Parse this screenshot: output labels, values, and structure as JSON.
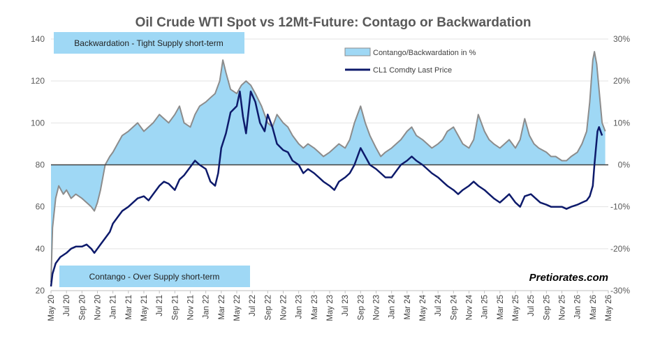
{
  "chart_data": {
    "type": "line",
    "title": "Oil Crude WTI Spot vs 12Mt-Future: Contago or Backwardation",
    "x_labels": [
      "May 20",
      "Jul 20",
      "Sep 20",
      "Nov 20",
      "Jan 21",
      "Mar 21",
      "May 21",
      "Jul 21",
      "Sep 21",
      "Nov 21",
      "Jan 22",
      "Mar 22",
      "May 22",
      "Jul 22",
      "Sep 22",
      "Nov 22",
      "Jan 23",
      "Mar 23",
      "May 23",
      "Jul 23",
      "Sep 23",
      "Nov 23",
      "Jan 24",
      "Mar 24",
      "May 24",
      "Jul 24",
      "Sep 24",
      "Nov 24",
      "Jan 25",
      "Mar 25",
      "May 25",
      "Jul 25",
      "Sep 25",
      "Nov 25",
      "Jan 26",
      "Mar 26",
      "May 26"
    ],
    "y_left": {
      "ticks": [
        20,
        40,
        60,
        80,
        100,
        120,
        140
      ],
      "range": [
        20,
        140
      ]
    },
    "y_right": {
      "ticks": [
        "-30%",
        "-20%",
        "-10%",
        "0%",
        "10%",
        "20%",
        "30%"
      ],
      "range": [
        -30,
        30
      ],
      "unit": "%"
    },
    "legend": {
      "area_label": "Contango/Backwardation in %",
      "line_label": "CL1 Comdty Last Price"
    },
    "annotations": {
      "top_box": "Backwardation - Tight Supply short-term",
      "bottom_box": "Contango - Over Supply short-term",
      "watermark": "Pretiorates.com"
    },
    "colors": {
      "area_fill": "#9fd8f5",
      "area_edge": "#8c8c8c",
      "price_line": "#0d1a6b",
      "box_fill": "#9fd8f5",
      "zero_line": "#404040"
    },
    "series": [
      {
        "name": "Contango/Backwardation in %",
        "axis": "right",
        "points": [
          [
            0,
            -28
          ],
          [
            0.1,
            -15
          ],
          [
            0.3,
            -8
          ],
          [
            0.5,
            -5
          ],
          [
            0.8,
            -7
          ],
          [
            1,
            -6
          ],
          [
            1.3,
            -8
          ],
          [
            1.6,
            -7
          ],
          [
            2,
            -8
          ],
          [
            2.3,
            -9
          ],
          [
            2.6,
            -10
          ],
          [
            2.8,
            -11
          ],
          [
            3,
            -9
          ],
          [
            3.2,
            -6
          ],
          [
            3.5,
            0
          ],
          [
            3.8,
            2
          ],
          [
            4,
            3
          ],
          [
            4.3,
            5
          ],
          [
            4.6,
            7
          ],
          [
            5,
            8
          ],
          [
            5.3,
            9
          ],
          [
            5.6,
            10
          ],
          [
            6,
            8
          ],
          [
            6.3,
            9
          ],
          [
            6.6,
            10
          ],
          [
            7,
            12
          ],
          [
            7.3,
            11
          ],
          [
            7.6,
            10
          ],
          [
            8,
            12
          ],
          [
            8.3,
            14
          ],
          [
            8.6,
            10
          ],
          [
            9,
            9
          ],
          [
            9.3,
            12
          ],
          [
            9.6,
            14
          ],
          [
            10,
            15
          ],
          [
            10.3,
            16
          ],
          [
            10.6,
            17
          ],
          [
            10.9,
            20
          ],
          [
            11.1,
            25
          ],
          [
            11.3,
            22
          ],
          [
            11.6,
            18
          ],
          [
            12,
            17
          ],
          [
            12.3,
            19
          ],
          [
            12.6,
            20
          ],
          [
            12.9,
            19
          ],
          [
            13.2,
            17
          ],
          [
            13.6,
            14
          ],
          [
            14,
            10
          ],
          [
            14.3,
            9
          ],
          [
            14.6,
            12
          ],
          [
            15,
            10
          ],
          [
            15.3,
            9
          ],
          [
            15.6,
            7
          ],
          [
            16,
            5
          ],
          [
            16.3,
            4
          ],
          [
            16.6,
            5
          ],
          [
            17,
            4
          ],
          [
            17.3,
            3
          ],
          [
            17.6,
            2
          ],
          [
            18,
            3
          ],
          [
            18.3,
            4
          ],
          [
            18.6,
            5
          ],
          [
            19,
            4
          ],
          [
            19.3,
            6
          ],
          [
            19.6,
            10
          ],
          [
            20,
            14
          ],
          [
            20.3,
            10
          ],
          [
            20.6,
            7
          ],
          [
            21,
            4
          ],
          [
            21.3,
            2
          ],
          [
            21.6,
            3
          ],
          [
            22,
            4
          ],
          [
            22.3,
            5
          ],
          [
            22.6,
            6
          ],
          [
            23,
            8
          ],
          [
            23.3,
            9
          ],
          [
            23.6,
            7
          ],
          [
            24,
            6
          ],
          [
            24.3,
            5
          ],
          [
            24.6,
            4
          ],
          [
            25,
            5
          ],
          [
            25.3,
            6
          ],
          [
            25.6,
            8
          ],
          [
            26,
            9
          ],
          [
            26.3,
            7
          ],
          [
            26.6,
            5
          ],
          [
            27,
            4
          ],
          [
            27.3,
            6
          ],
          [
            27.6,
            12
          ],
          [
            28,
            8
          ],
          [
            28.3,
            6
          ],
          [
            28.6,
            5
          ],
          [
            29,
            4
          ],
          [
            29.3,
            5
          ],
          [
            29.6,
            6
          ],
          [
            30,
            4
          ],
          [
            30.3,
            6
          ],
          [
            30.6,
            11
          ],
          [
            30.9,
            7
          ],
          [
            31.2,
            5
          ],
          [
            31.5,
            4
          ],
          [
            32,
            3
          ],
          [
            32.3,
            2
          ],
          [
            32.6,
            2
          ],
          [
            33,
            1
          ],
          [
            33.3,
            1
          ],
          [
            33.6,
            2
          ],
          [
            34,
            3
          ],
          [
            34.3,
            5
          ],
          [
            34.6,
            8
          ],
          [
            34.8,
            15
          ],
          [
            35,
            25
          ],
          [
            35.1,
            27
          ],
          [
            35.25,
            24
          ],
          [
            35.4,
            18
          ],
          [
            35.6,
            10
          ],
          [
            35.8,
            8
          ]
        ]
      },
      {
        "name": "CL1 Comdty Last Price",
        "axis": "left",
        "points": [
          [
            0,
            22
          ],
          [
            0.1,
            28
          ],
          [
            0.3,
            33
          ],
          [
            0.6,
            36
          ],
          [
            1,
            38
          ],
          [
            1.3,
            40
          ],
          [
            1.6,
            41
          ],
          [
            2,
            41
          ],
          [
            2.3,
            42
          ],
          [
            2.6,
            40
          ],
          [
            2.8,
            38
          ],
          [
            3,
            40
          ],
          [
            3.2,
            42
          ],
          [
            3.5,
            45
          ],
          [
            3.8,
            48
          ],
          [
            4,
            52
          ],
          [
            4.3,
            55
          ],
          [
            4.6,
            58
          ],
          [
            5,
            60
          ],
          [
            5.3,
            62
          ],
          [
            5.6,
            64
          ],
          [
            6,
            65
          ],
          [
            6.3,
            63
          ],
          [
            6.6,
            66
          ],
          [
            7,
            70
          ],
          [
            7.3,
            72
          ],
          [
            7.6,
            71
          ],
          [
            8,
            68
          ],
          [
            8.3,
            73
          ],
          [
            8.6,
            75
          ],
          [
            9,
            79
          ],
          [
            9.3,
            82
          ],
          [
            9.6,
            80
          ],
          [
            10,
            78
          ],
          [
            10.3,
            72
          ],
          [
            10.6,
            70
          ],
          [
            10.8,
            76
          ],
          [
            11,
            88
          ],
          [
            11.3,
            95
          ],
          [
            11.6,
            105
          ],
          [
            12,
            108
          ],
          [
            12.2,
            115
          ],
          [
            12.4,
            103
          ],
          [
            12.6,
            95
          ],
          [
            12.9,
            115
          ],
          [
            13.2,
            110
          ],
          [
            13.5,
            100
          ],
          [
            13.8,
            96
          ],
          [
            14,
            104
          ],
          [
            14.3,
            98
          ],
          [
            14.6,
            90
          ],
          [
            15,
            87
          ],
          [
            15.3,
            86
          ],
          [
            15.6,
            82
          ],
          [
            16,
            80
          ],
          [
            16.3,
            76
          ],
          [
            16.6,
            78
          ],
          [
            17,
            76
          ],
          [
            17.3,
            74
          ],
          [
            17.6,
            72
          ],
          [
            18,
            70
          ],
          [
            18.3,
            68
          ],
          [
            18.6,
            72
          ],
          [
            19,
            74
          ],
          [
            19.3,
            76
          ],
          [
            19.6,
            80
          ],
          [
            20,
            88
          ],
          [
            20.3,
            84
          ],
          [
            20.6,
            80
          ],
          [
            21,
            78
          ],
          [
            21.3,
            76
          ],
          [
            21.6,
            74
          ],
          [
            22,
            74
          ],
          [
            22.3,
            77
          ],
          [
            22.6,
            80
          ],
          [
            23,
            82
          ],
          [
            23.3,
            84
          ],
          [
            23.6,
            82
          ],
          [
            24,
            80
          ],
          [
            24.3,
            78
          ],
          [
            24.6,
            76
          ],
          [
            25,
            74
          ],
          [
            25.3,
            72
          ],
          [
            25.6,
            70
          ],
          [
            26,
            68
          ],
          [
            26.3,
            66
          ],
          [
            26.6,
            68
          ],
          [
            27,
            70
          ],
          [
            27.3,
            72
          ],
          [
            27.6,
            70
          ],
          [
            28,
            68
          ],
          [
            28.3,
            66
          ],
          [
            28.6,
            64
          ],
          [
            29,
            62
          ],
          [
            29.3,
            64
          ],
          [
            29.6,
            66
          ],
          [
            30,
            62
          ],
          [
            30.3,
            60
          ],
          [
            30.6,
            65
          ],
          [
            31,
            66
          ],
          [
            31.3,
            64
          ],
          [
            31.6,
            62
          ],
          [
            32,
            61
          ],
          [
            32.3,
            60
          ],
          [
            32.6,
            60
          ],
          [
            33,
            60
          ],
          [
            33.3,
            59
          ],
          [
            33.6,
            60
          ],
          [
            34,
            61
          ],
          [
            34.3,
            62
          ],
          [
            34.6,
            63
          ],
          [
            34.8,
            65
          ],
          [
            35,
            70
          ],
          [
            35.1,
            80
          ],
          [
            35.2,
            88
          ],
          [
            35.3,
            96
          ],
          [
            35.4,
            98
          ],
          [
            35.5,
            96
          ],
          [
            35.6,
            94
          ]
        ]
      }
    ]
  }
}
